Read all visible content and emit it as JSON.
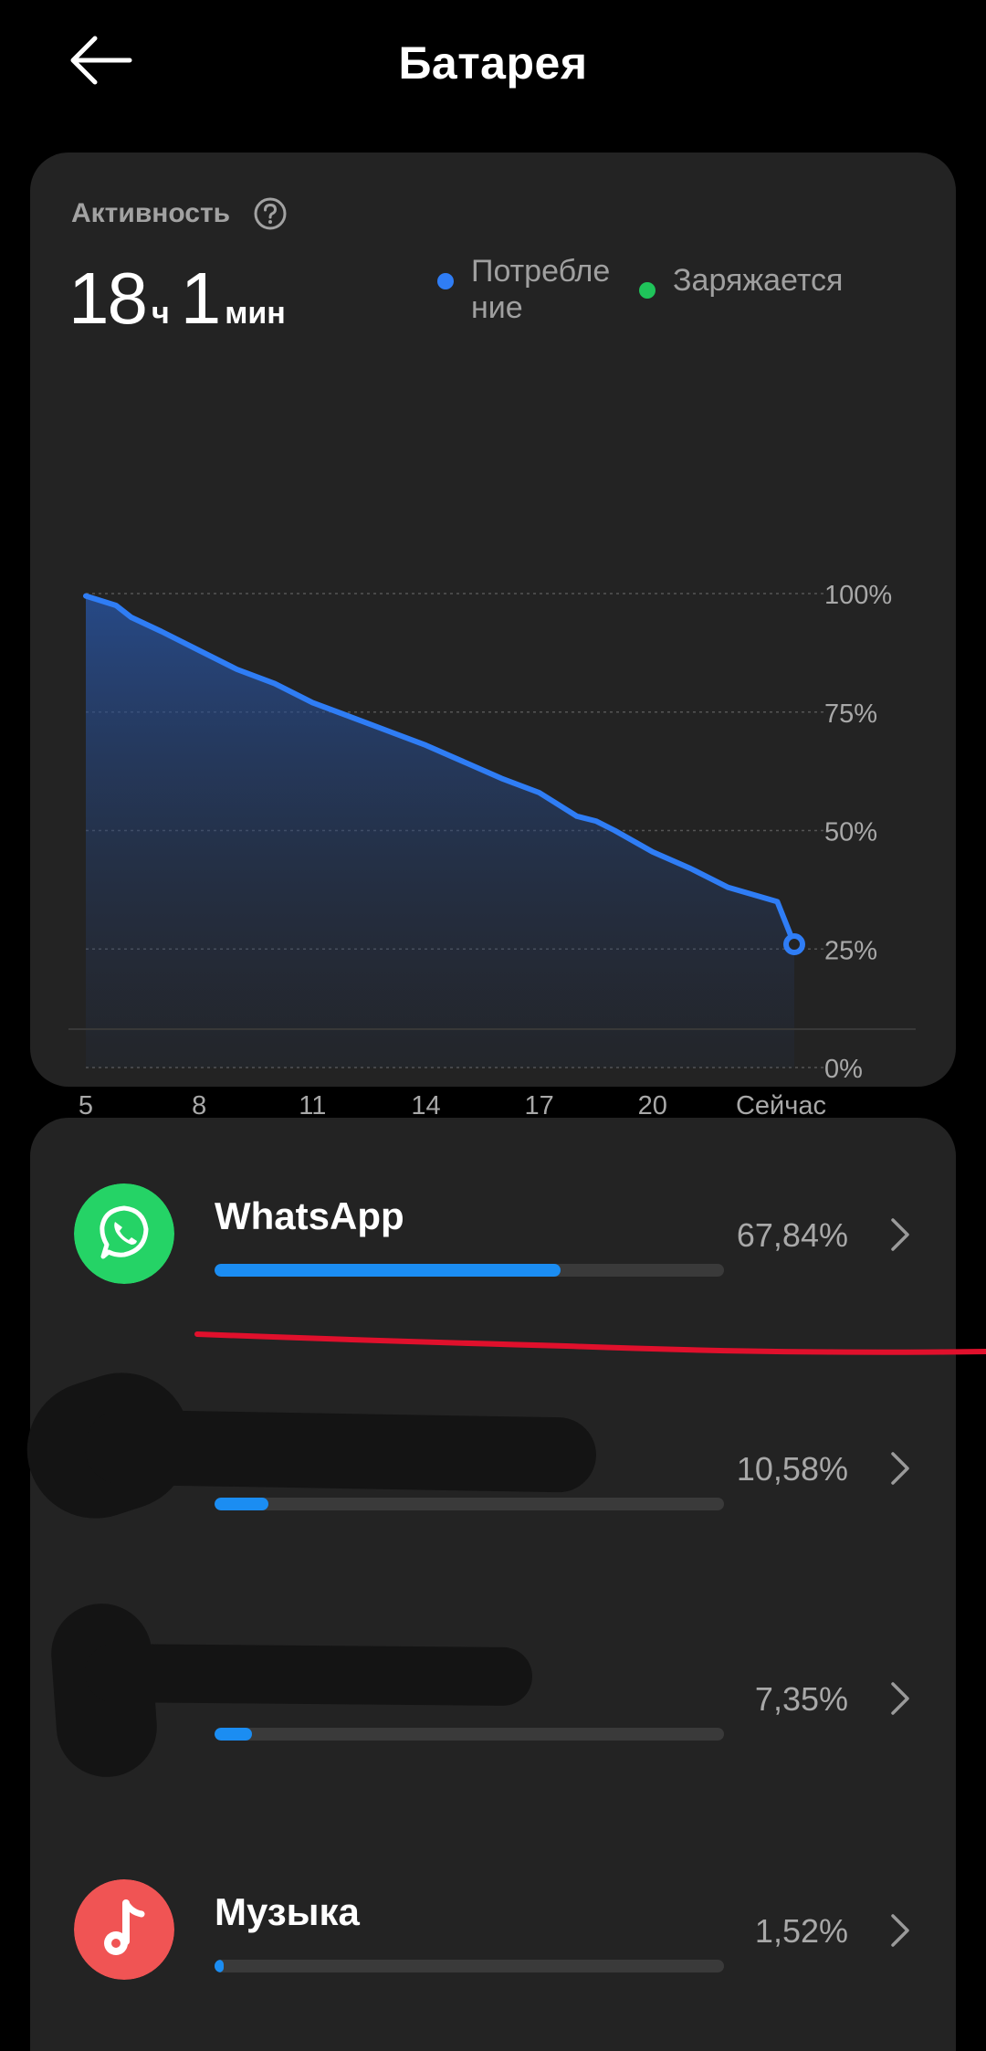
{
  "header": {
    "title": "Батарея",
    "back_icon": "arrow-left-icon"
  },
  "activity": {
    "label": "Активность",
    "help_icon": "question-circle-icon",
    "hours": "18",
    "hours_unit": "ч",
    "minutes": "1",
    "minutes_unit": "мин",
    "legend": [
      {
        "label": "Потребле\nние",
        "color": "#2f7df5"
      },
      {
        "label": "Заряжается",
        "color": "#1fc35a"
      }
    ]
  },
  "chart_data": {
    "type": "area",
    "x_ticks": [
      "5",
      "8",
      "11",
      "14",
      "17",
      "20",
      "Сейчас"
    ],
    "y_ticks": [
      "100%",
      "75%",
      "50%",
      "25%",
      "0%"
    ],
    "ylim": [
      0,
      100
    ],
    "series": [
      {
        "name": "Потребление",
        "color": "#2f7df5",
        "x": [
          5.0,
          5.8,
          6.2,
          7.0,
          8.0,
          9.0,
          10.0,
          11.0,
          12.0,
          13.0,
          14.0,
          15.0,
          16.0,
          17.0,
          18.0,
          18.5,
          19.0,
          20.0,
          21.0,
          22.0,
          23.3,
          23.75
        ],
        "y": [
          99.5,
          97.5,
          95,
          92,
          88,
          84,
          81,
          77,
          74,
          71,
          68,
          64.5,
          61,
          58,
          53,
          52,
          50,
          45.5,
          42,
          38,
          35,
          26
        ]
      }
    ],
    "grid": true,
    "legend": "top-right"
  },
  "apps": [
    {
      "name": "WhatsApp",
      "percent": "67,84%",
      "fraction": 0.6784,
      "icon": "whatsapp-icon",
      "icon_color": "#25d366"
    },
    {
      "name": "",
      "percent": "10,58%",
      "fraction": 0.1058,
      "icon": "",
      "icon_color": ""
    },
    {
      "name": "",
      "percent": "7,35%",
      "fraction": 0.0735,
      "icon": "",
      "icon_color": ""
    },
    {
      "name": "Музыка",
      "percent": "1,52%",
      "fraction": 0.0152,
      "icon": "music-note-icon",
      "icon_color": "#f05454"
    }
  ],
  "colors": {
    "background": "#000000",
    "card": "#232323",
    "accent": "#1b8df2",
    "annotation": "#e0102c"
  }
}
